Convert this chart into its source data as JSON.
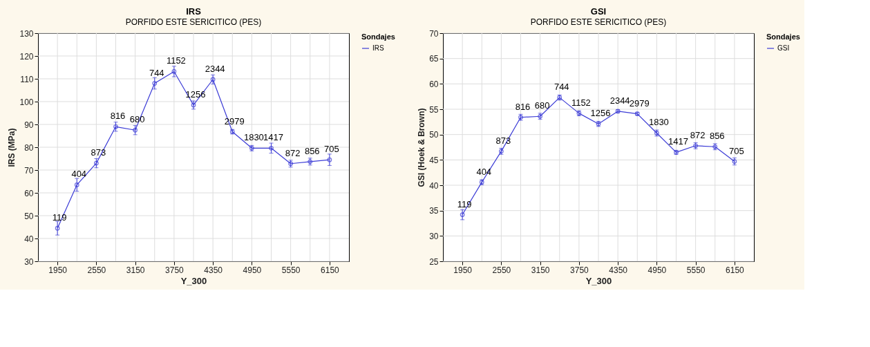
{
  "chart_data": [
    {
      "type": "line",
      "title": "IRS",
      "subtitle": "PORFIDO ESTE SERICITICO (PES)",
      "xlabel": "Y_300",
      "ylabel": "IRS (MPa)",
      "legend_title": "Sondajes",
      "legend": "right",
      "grid": true,
      "marker": "circle",
      "line_style": "solid",
      "x": [
        1950,
        2250,
        2550,
        2850,
        3150,
        3450,
        3750,
        4050,
        4350,
        4650,
        4950,
        5250,
        5550,
        5850,
        6150
      ],
      "series": [
        {
          "name": "IRS",
          "color": "#3b3bd6",
          "values": [
            44.5,
            63.5,
            73,
            89,
            87.5,
            108,
            113.2,
            98.5,
            109.7,
            86.8,
            79.6,
            79.6,
            72.8,
            73.7,
            74.5
          ],
          "errors": [
            3,
            2.8,
            2,
            2,
            2,
            2.5,
            2.3,
            1.8,
            2,
            1,
            1.2,
            2.2,
            1.5,
            1.5,
            2.5
          ]
        }
      ],
      "annotations": [
        {
          "text": "119",
          "x": 1950,
          "y": 44.5
        },
        {
          "text": "404",
          "x": 2250,
          "y": 63.5
        },
        {
          "text": "873",
          "x": 2550,
          "y": 73
        },
        {
          "text": "816",
          "x": 2850,
          "y": 89
        },
        {
          "text": "680",
          "x": 3150,
          "y": 87.5
        },
        {
          "text": "744",
          "x": 3450,
          "y": 108
        },
        {
          "text": "1152",
          "x": 3750,
          "y": 113.2
        },
        {
          "text": "1256",
          "x": 4050,
          "y": 98.5
        },
        {
          "text": "2344",
          "x": 4350,
          "y": 109.7
        },
        {
          "text": "2979",
          "x": 4650,
          "y": 86.8
        },
        {
          "text": "1830",
          "x": 4950,
          "y": 79.6
        },
        {
          "text": "1417",
          "x": 5250,
          "y": 79.6
        },
        {
          "text": "872",
          "x": 5550,
          "y": 72.8
        },
        {
          "text": "856",
          "x": 5850,
          "y": 73.7
        },
        {
          "text": "705",
          "x": 6150,
          "y": 74.5
        }
      ],
      "xlim": [
        1650,
        6450
      ],
      "xticks": [
        1950,
        {
          "value": 2250,
          "label": null
        },
        2550,
        {
          "value": 2850,
          "label": null
        },
        3150,
        {
          "value": 3450,
          "label": null
        },
        3750,
        {
          "value": 4050,
          "label": null
        },
        4350,
        {
          "value": 4650,
          "label": null
        },
        4950,
        {
          "value": 5250,
          "label": null
        },
        5550,
        {
          "value": 5850,
          "label": null
        },
        6150
      ],
      "ylim": [
        30,
        130
      ],
      "yticks": [
        30,
        40,
        50,
        60,
        70,
        80,
        90,
        100,
        110,
        120,
        130
      ]
    },
    {
      "type": "line",
      "title": "GSI",
      "subtitle": "PORFIDO ESTE SERICITICO (PES)",
      "xlabel": "Y_300",
      "ylabel": "GSI (Hoek & Brown)",
      "legend_title": "Sondajes",
      "legend": "right",
      "grid": true,
      "marker": "circle",
      "line_style": "solid",
      "x": [
        1950,
        2250,
        2550,
        2850,
        3150,
        3450,
        3750,
        4050,
        4350,
        4650,
        4950,
        5250,
        5550,
        5850,
        6150
      ],
      "series": [
        {
          "name": "GSI",
          "color": "#3b3bd6",
          "values": [
            34.2,
            40.6,
            46.7,
            53.4,
            53.6,
            57.3,
            54.2,
            52.1,
            54.6,
            54.1,
            50.3,
            46.5,
            47.8,
            47.6,
            44.7
          ],
          "errors": [
            1,
            0.5,
            0.6,
            0.6,
            0.6,
            0.5,
            0.5,
            0.5,
            0.3,
            0.3,
            0.6,
            0.4,
            0.6,
            0.6,
            0.7
          ]
        }
      ],
      "annotations": [
        {
          "text": "119",
          "x": 1950,
          "y": 34.2
        },
        {
          "text": "404",
          "x": 2250,
          "y": 40.6
        },
        {
          "text": "873",
          "x": 2550,
          "y": 46.7
        },
        {
          "text": "816",
          "x": 2850,
          "y": 53.4
        },
        {
          "text": "680",
          "x": 3150,
          "y": 53.6
        },
        {
          "text": "744",
          "x": 3450,
          "y": 57.3
        },
        {
          "text": "1152",
          "x": 3750,
          "y": 54.2
        },
        {
          "text": "1256",
          "x": 4050,
          "y": 52.1
        },
        {
          "text": "2344",
          "x": 4350,
          "y": 54.6
        },
        {
          "text": "2979",
          "x": 4650,
          "y": 54.1
        },
        {
          "text": "1830",
          "x": 4950,
          "y": 50.3
        },
        {
          "text": "1417",
          "x": 5250,
          "y": 46.5
        },
        {
          "text": "872",
          "x": 5550,
          "y": 47.8
        },
        {
          "text": "856",
          "x": 5850,
          "y": 47.6
        },
        {
          "text": "705",
          "x": 6150,
          "y": 44.7
        }
      ],
      "xlim": [
        1650,
        6450
      ],
      "xticks": [
        1950,
        {
          "value": 2250,
          "label": null
        },
        2550,
        {
          "value": 2850,
          "label": null
        },
        3150,
        {
          "value": 3450,
          "label": null
        },
        3750,
        {
          "value": 4050,
          "label": null
        },
        4350,
        {
          "value": 4650,
          "label": null
        },
        4950,
        {
          "value": 5250,
          "label": null
        },
        5550,
        {
          "value": 5850,
          "label": null
        },
        6150
      ],
      "ylim": [
        25,
        70
      ],
      "yticks": [
        25,
        30,
        35,
        40,
        45,
        50,
        55,
        60,
        65,
        70
      ]
    }
  ]
}
